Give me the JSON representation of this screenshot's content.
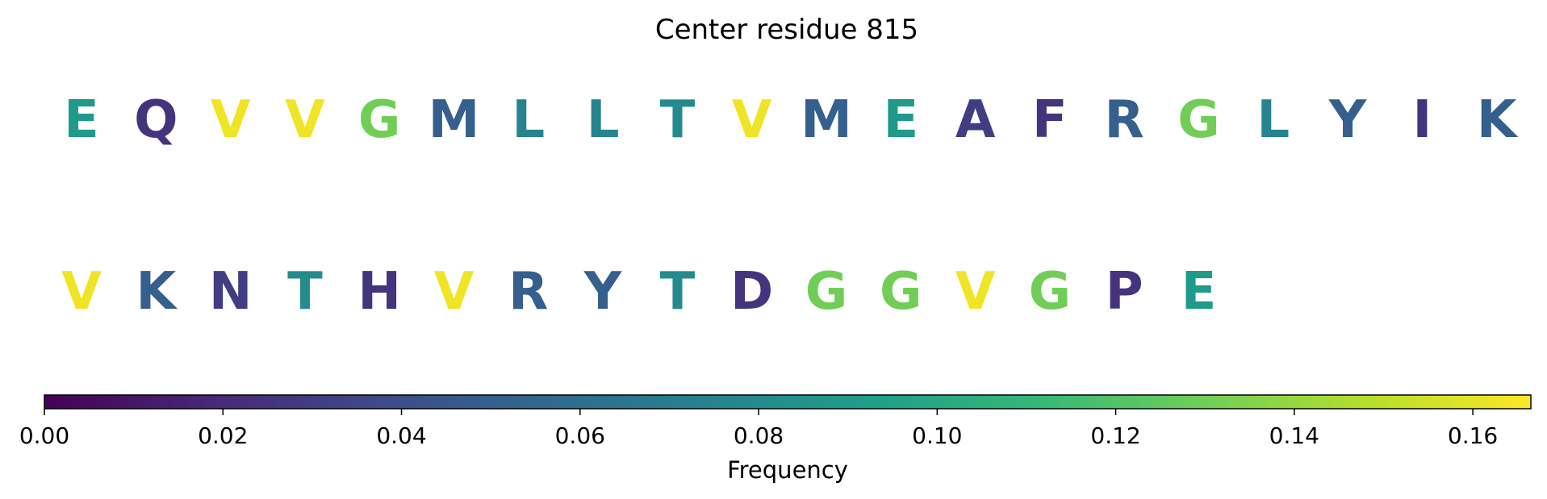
{
  "chart_data": {
    "type": "sequence-logo",
    "title": "Center residue 815",
    "rows": [
      {
        "residues": [
          {
            "letter": "E",
            "frequency": 0.09
          },
          {
            "letter": "Q",
            "frequency": 0.025
          },
          {
            "letter": "V",
            "frequency": 0.163
          },
          {
            "letter": "V",
            "frequency": 0.163
          },
          {
            "letter": "G",
            "frequency": 0.13
          },
          {
            "letter": "M",
            "frequency": 0.05
          },
          {
            "letter": "L",
            "frequency": 0.075
          },
          {
            "letter": "L",
            "frequency": 0.075
          },
          {
            "letter": "T",
            "frequency": 0.08
          },
          {
            "letter": "V",
            "frequency": 0.163
          },
          {
            "letter": "M",
            "frequency": 0.05
          },
          {
            "letter": "E",
            "frequency": 0.09
          },
          {
            "letter": "A",
            "frequency": 0.03
          },
          {
            "letter": "F",
            "frequency": 0.025
          },
          {
            "letter": "R",
            "frequency": 0.05
          },
          {
            "letter": "G",
            "frequency": 0.13
          },
          {
            "letter": "L",
            "frequency": 0.075
          },
          {
            "letter": "Y",
            "frequency": 0.05
          },
          {
            "letter": "I",
            "frequency": 0.025
          },
          {
            "letter": "K",
            "frequency": 0.05
          }
        ]
      },
      {
        "residues": [
          {
            "letter": "V",
            "frequency": 0.163
          },
          {
            "letter": "K",
            "frequency": 0.05
          },
          {
            "letter": "N",
            "frequency": 0.03
          },
          {
            "letter": "T",
            "frequency": 0.08
          },
          {
            "letter": "H",
            "frequency": 0.025
          },
          {
            "letter": "V",
            "frequency": 0.163
          },
          {
            "letter": "R",
            "frequency": 0.05
          },
          {
            "letter": "Y",
            "frequency": 0.05
          },
          {
            "letter": "T",
            "frequency": 0.08
          },
          {
            "letter": "D",
            "frequency": 0.025
          },
          {
            "letter": "G",
            "frequency": 0.13
          },
          {
            "letter": "G",
            "frequency": 0.13
          },
          {
            "letter": "V",
            "frequency": 0.163
          },
          {
            "letter": "G",
            "frequency": 0.13
          },
          {
            "letter": "P",
            "frequency": 0.025
          },
          {
            "letter": "E",
            "frequency": 0.09
          }
        ]
      }
    ],
    "colorbar": {
      "label": "Frequency",
      "colormap": "viridis",
      "range": [
        0.0,
        0.1665
      ],
      "ticks": [
        0.0,
        0.02,
        0.04,
        0.06,
        0.08,
        0.1,
        0.12,
        0.14,
        0.16
      ],
      "tick_labels": [
        "0.00",
        "0.02",
        "0.04",
        "0.06",
        "0.08",
        "0.10",
        "0.12",
        "0.14",
        "0.16"
      ],
      "orientation": "horizontal",
      "placement": "bottom"
    },
    "viridis_stops": [
      "#440154",
      "#482878",
      "#3e4989",
      "#31688e",
      "#26828e",
      "#1f9e89",
      "#35b779",
      "#6ece58",
      "#b5de2b",
      "#fde725"
    ]
  }
}
